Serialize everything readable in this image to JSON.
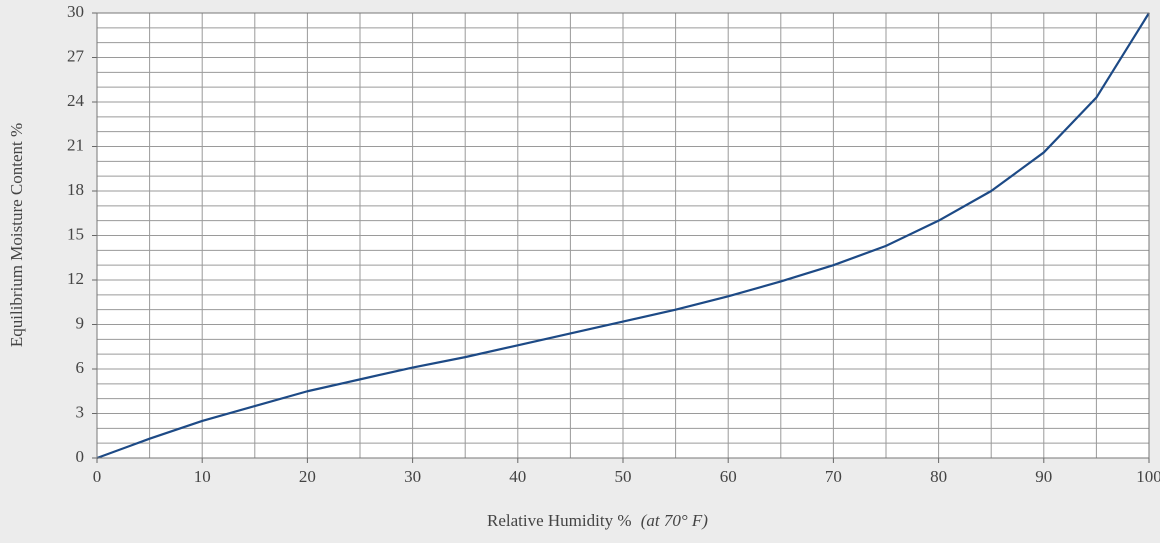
{
  "chart_data": {
    "type": "line",
    "x_label": "Relative Humidity %",
    "x_label_note": "(at 70° F)",
    "y_label": "Equilibrium Moisture Content %",
    "x": [
      0,
      5,
      10,
      15,
      20,
      25,
      30,
      35,
      40,
      45,
      50,
      55,
      60,
      65,
      70,
      75,
      80,
      85,
      90,
      95,
      100
    ],
    "series": [
      {
        "name": "Equilibrium Moisture Content",
        "color": "#1d4a86",
        "values": [
          0,
          1.3,
          2.5,
          3.5,
          4.5,
          5.3,
          6.1,
          6.8,
          7.6,
          8.4,
          9.2,
          10.0,
          10.9,
          11.9,
          13.0,
          14.3,
          16.0,
          18.0,
          20.6,
          24.3,
          30
        ]
      }
    ],
    "xlim": [
      0,
      100
    ],
    "ylim": [
      0,
      30
    ],
    "xticks": [
      0,
      10,
      20,
      30,
      40,
      50,
      60,
      70,
      80,
      90,
      100
    ],
    "yticks": [
      0,
      3,
      6,
      9,
      12,
      15,
      18,
      21,
      24,
      27,
      30
    ],
    "xgrid": [
      0,
      5,
      10,
      15,
      20,
      25,
      30,
      35,
      40,
      45,
      50,
      55,
      60,
      65,
      70,
      75,
      80,
      85,
      90,
      95,
      100
    ],
    "ygrid": [
      0,
      1,
      2,
      3,
      4,
      5,
      6,
      7,
      8,
      9,
      10,
      11,
      12,
      13,
      14,
      15,
      16,
      17,
      18,
      19,
      20,
      21,
      22,
      23,
      24,
      25,
      26,
      27,
      28,
      29,
      30
    ]
  }
}
